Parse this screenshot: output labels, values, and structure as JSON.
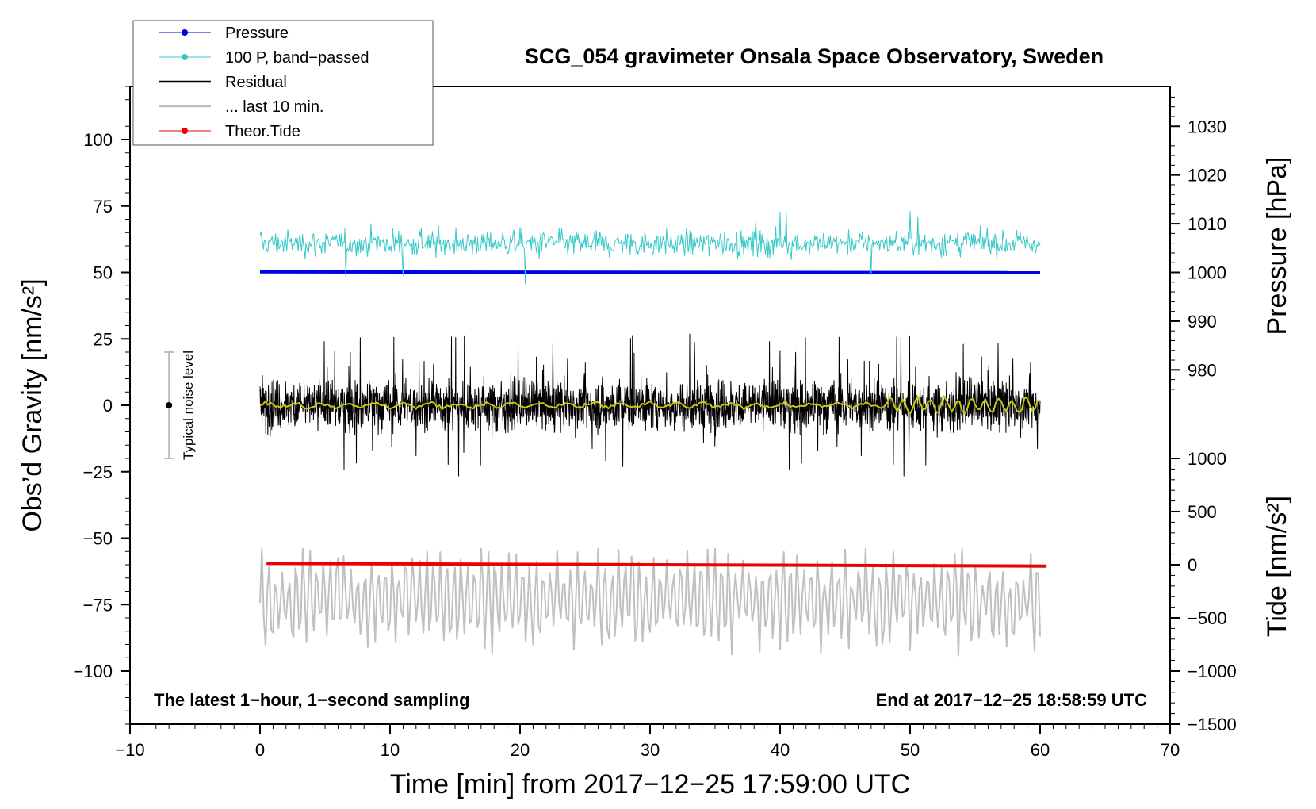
{
  "chart_data": {
    "type": "line",
    "title": "SCG_054 gravimeter Onsala Space Observatory, Sweden",
    "xlabel": "Time [min] from 2017−12−25 17:59:00 UTC",
    "ylabel_left": "Obs’d Gravity [nm/s²]",
    "ylabel_pressure": "Pressure [hPa]",
    "ylabel_tide": "Tide [nm/s²]",
    "xlim": [
      -10,
      70
    ],
    "ylim_left": [
      -120,
      120
    ],
    "x_ticks": [
      -10,
      0,
      10,
      20,
      30,
      40,
      50,
      60,
      70
    ],
    "x_tick_labels": [
      "−10",
      "0",
      "10",
      "20",
      "30",
      "40",
      "50",
      "60",
      "70"
    ],
    "y_ticks_left": [
      -100,
      -75,
      -50,
      -25,
      0,
      25,
      50,
      75,
      100
    ],
    "y_tick_labels_left": [
      "−100",
      "−75",
      "−50",
      "−25",
      "0",
      "25",
      "50",
      "75",
      "100"
    ],
    "pressure_axis": {
      "ticks": [
        980,
        990,
        1000,
        1010,
        1020,
        1030
      ],
      "tick_labels": [
        "980",
        "990",
        "1000",
        "1010",
        "1020",
        "1030"
      ],
      "left_value_at_1000": 50,
      "left_units_per_hpa": 1.8333
    },
    "tide_axis": {
      "ticks": [
        -1500,
        -1000,
        -500,
        0,
        500,
        1000
      ],
      "tick_labels": [
        "−1500",
        "−1000",
        "−500",
        "0",
        "500",
        "1000"
      ],
      "left_value_at_0": -60,
      "left_units_per_nms2": 0.04
    },
    "note_left": "The latest 1−hour, 1−second sampling",
    "note_right": "End at 2017−12−25 18:58:59 UTC",
    "noise_bar": {
      "label": "Typical noise level",
      "x": -7,
      "center": 0,
      "half_range": 20,
      "color": "#bbbbbb"
    },
    "series": [
      {
        "name": "Pressure",
        "axis": "left",
        "color": "#0000e6",
        "x_start": 0,
        "x_end": 60,
        "start_value": 50.2,
        "end_value": 49.9,
        "style": "line-dot"
      },
      {
        "name": "100 P, band−passed",
        "axis": "left",
        "color": "#37c8c8",
        "x_start": 0,
        "x_end": 60,
        "mean": 61,
        "amplitude": 4,
        "spike_min": 42,
        "spike_max": 73,
        "style": "line-dot"
      },
      {
        "name": "Residual",
        "axis": "left",
        "color": "#000000",
        "x_start": 0,
        "x_end": 60,
        "mean": 0,
        "amplitude": 8,
        "spike_min": -27,
        "spike_max": 29,
        "style": "line"
      },
      {
        "name": "... last 10 min.",
        "axis": "left",
        "color": "#c0c0c0",
        "x_start": 0,
        "x_end": 60,
        "mean": -73,
        "amplitude": 10,
        "spike_min": -96,
        "spike_max": -54,
        "style": "line"
      },
      {
        "name": "Theor.Tide",
        "axis": "left",
        "color": "#ee0000",
        "x_start": 0.5,
        "x_end": 60.5,
        "start_value": -59.5,
        "end_value": -60.5,
        "style": "line-dot"
      },
      {
        "name": "smoothed residual",
        "axis": "left",
        "color": "#c8c810",
        "x_start": 0,
        "x_end": 60,
        "mean": 0,
        "amplitude": 1,
        "in_legend": false,
        "style": "line"
      }
    ],
    "legend": {
      "position": "top-left",
      "items": [
        "Pressure",
        "100 P, band−passed",
        "Residual",
        "... last 10 min.",
        "Theor.Tide"
      ]
    }
  }
}
